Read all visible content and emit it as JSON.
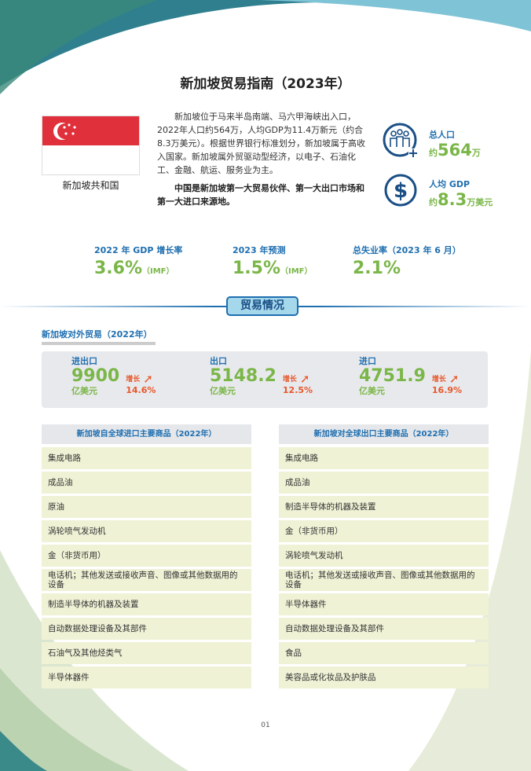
{
  "title": "新加坡贸易指南（2023年）",
  "country": {
    "name": "新加坡共和国",
    "flag_colors": [
      "#e0303b",
      "#ffffff"
    ]
  },
  "intro": "新加坡位于马来半岛南端、马六甲海峡出入口，2022年人口约564万，人均GDP为11.4万新元（约合8.3万美元）。根据世界银行标准划分，新加坡属于高收入国家。新加坡属外贸驱动型经济，以电子、石油化工、金融、航运、服务业为主。",
  "intro_bold": "中国是新加坡第一大贸易伙伴、第一大出口市场和第一大进口来源地。",
  "stats": [
    {
      "icon": "people-icon",
      "label": "总人口",
      "prefix": "约",
      "value": "564",
      "suffix": "万"
    },
    {
      "icon": "dollar-icon",
      "label": "人均 GDP",
      "prefix": "约",
      "value": "8.3",
      "suffix": "万美元"
    }
  ],
  "kpis": [
    {
      "label": "2022 年 GDP 增长率",
      "value": "3.6%",
      "note": "（IMF）"
    },
    {
      "label": "2023 年预测",
      "value": "1.5%",
      "note": "（IMF）"
    },
    {
      "label": "总失业率（2023 年 6 月）",
      "value": "2.1%",
      "note": ""
    }
  ],
  "section": "贸易情况",
  "trade_heading": "新加坡对外贸易（2022年）",
  "trade": [
    {
      "label": "进出口",
      "value": "9900",
      "unit": "亿美元",
      "growth_label": "增长",
      "growth": "14.6%"
    },
    {
      "label": "出口",
      "value": "5148.2",
      "unit": "亿美元",
      "growth_label": "增长",
      "growth": "12.5%"
    },
    {
      "label": "进口",
      "value": "4751.9",
      "unit": "亿美元",
      "growth_label": "增长",
      "growth": "16.9%"
    }
  ],
  "imports": {
    "header": "新加坡自全球进口主要商品（2022年）",
    "items": [
      "集成电路",
      "成品油",
      "原油",
      "涡轮喷气发动机",
      "金（非货币用）",
      "电话机；其他发送或接收声音、图像或其他数据用的设备",
      "制造半导体的机器及装置",
      "自动数据处理设备及其部件",
      "石油气及其他烃类气",
      "半导体器件"
    ]
  },
  "exports": {
    "header": "新加坡对全球出口主要商品（2022年）",
    "items": [
      "集成电路",
      "成品油",
      "制造半导体的机器及装置",
      "金（非货币用）",
      "涡轮喷气发动机",
      "电话机；其他发送或接收声音、图像或其他数据用的设备",
      "半导体器件",
      "自动数据处理设备及其部件",
      "食品",
      "美容品或化妆品及护肤品"
    ]
  },
  "page_number": "01",
  "colors": {
    "blue": "#1f6fb0",
    "green": "#7ab648",
    "orange": "#e8572a"
  }
}
